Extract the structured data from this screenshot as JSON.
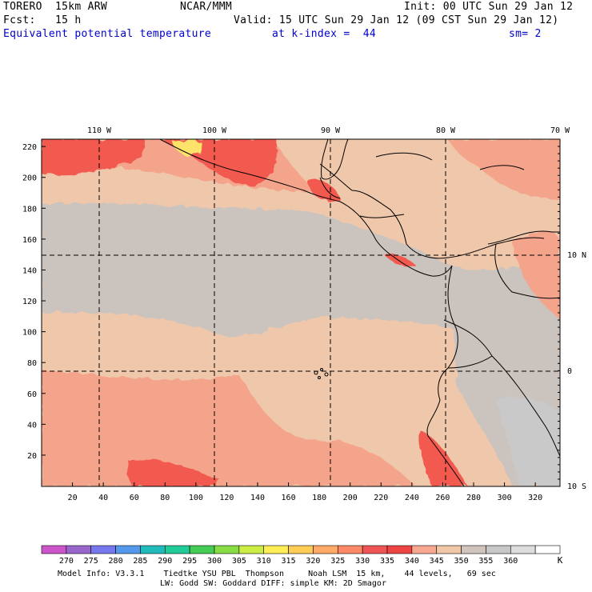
{
  "header": {
    "model": "TORERO  15km ARW",
    "agency": "NCAR/MMM",
    "init": "Init: 00 UTC Sun 29 Jan 12",
    "fcst": "Fcst:   15 h",
    "valid": "Valid: 15 UTC Sun 29 Jan 12 (09 CST Sun 29 Jan 12)",
    "field": "Equivalent potential temperature",
    "level": "at k-index =  44",
    "smooth": "sm= 2"
  },
  "map": {
    "lon_labels": [
      "110 W",
      "100 W",
      "90 W",
      "80 W",
      "70 W"
    ],
    "lat_labels": [
      "10 N",
      "0",
      "10 S"
    ],
    "y_ticks": [
      "220",
      "200",
      "180",
      "160",
      "140",
      "120",
      "100",
      "80",
      "60",
      "40",
      "20"
    ],
    "x_ticks": [
      "20",
      "40",
      "60",
      "80",
      "100",
      "120",
      "140",
      "160",
      "180",
      "200",
      "220",
      "240",
      "260",
      "280",
      "300",
      "320"
    ]
  },
  "colorbar": {
    "labels": [
      "270",
      "275",
      "280",
      "285",
      "290",
      "295",
      "300",
      "305",
      "310",
      "315",
      "320",
      "325",
      "330",
      "335",
      "340",
      "345",
      "350",
      "355",
      "360"
    ],
    "unit": "K",
    "colors": [
      "#cc55cc",
      "#9966cc",
      "#7777ee",
      "#5599ee",
      "#22bbbb",
      "#22cc99",
      "#44cc55",
      "#88dd44",
      "#ccee44",
      "#ffee55",
      "#ffcc55",
      "#ffaa66",
      "#ff8866",
      "#f05555",
      "#ee4444",
      "#f8a890",
      "#f0c8a8",
      "#d0c4bc",
      "#c8c8c8",
      "#dddddd",
      "#ffffff"
    ]
  },
  "footer": {
    "line1": "Model Info: V3.3.1    Tiedtke YSU PBL  Thompson     Noah LSM  15 km,    44 levels,   69 sec",
    "line2": "LW: Godd SW: Goddard DIFF: simple KM: 2D Smagor"
  },
  "style": {
    "background_field": "#efc7ab",
    "grey_band": "#cbc3be",
    "warm": "#f5a48c",
    "hot": "#f25a4f",
    "peak": "#fde36a",
    "coast": "#000000"
  }
}
